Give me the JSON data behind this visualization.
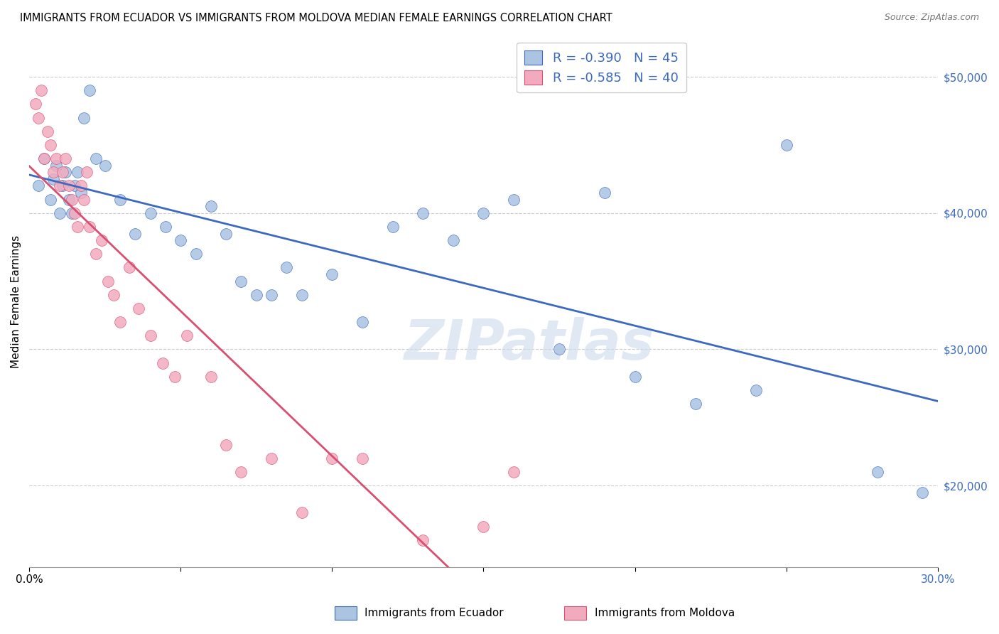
{
  "title": "IMMIGRANTS FROM ECUADOR VS IMMIGRANTS FROM MOLDOVA MEDIAN FEMALE EARNINGS CORRELATION CHART",
  "source": "Source: ZipAtlas.com",
  "ylabel": "Median Female Earnings",
  "yticks": [
    20000,
    30000,
    40000,
    50000
  ],
  "ytick_labels": [
    "$20,000",
    "$30,000",
    "$40,000",
    "$50,000"
  ],
  "xlim": [
    0.0,
    0.3
  ],
  "ylim": [
    14000,
    53000
  ],
  "ecuador_color": "#aac4e2",
  "moldova_color": "#f2abbe",
  "ecuador_line_color": "#3b6abf",
  "moldova_line_color": "#d94f72",
  "ecuador_label": "Immigrants from Ecuador",
  "moldova_label": "Immigrants from Moldova",
  "ecuador_R": -0.39,
  "ecuador_N": 45,
  "moldova_R": -0.585,
  "moldova_N": 40,
  "ecuador_x": [
    0.003,
    0.005,
    0.007,
    0.008,
    0.009,
    0.01,
    0.011,
    0.012,
    0.013,
    0.014,
    0.015,
    0.016,
    0.017,
    0.018,
    0.02,
    0.022,
    0.025,
    0.03,
    0.035,
    0.04,
    0.045,
    0.05,
    0.055,
    0.06,
    0.065,
    0.07,
    0.075,
    0.08,
    0.085,
    0.09,
    0.1,
    0.11,
    0.12,
    0.13,
    0.14,
    0.15,
    0.16,
    0.175,
    0.19,
    0.2,
    0.22,
    0.24,
    0.25,
    0.28,
    0.295
  ],
  "ecuador_y": [
    42000,
    44000,
    41000,
    42500,
    43500,
    40000,
    42000,
    43000,
    41000,
    40000,
    42000,
    43000,
    41500,
    47000,
    49000,
    44000,
    43500,
    41000,
    38500,
    40000,
    39000,
    38000,
    37000,
    40500,
    38500,
    35000,
    34000,
    34000,
    36000,
    34000,
    35500,
    32000,
    39000,
    40000,
    38000,
    40000,
    41000,
    30000,
    41500,
    28000,
    26000,
    27000,
    45000,
    21000,
    19500
  ],
  "moldova_x": [
    0.002,
    0.003,
    0.004,
    0.005,
    0.006,
    0.007,
    0.008,
    0.009,
    0.01,
    0.011,
    0.012,
    0.013,
    0.014,
    0.015,
    0.016,
    0.017,
    0.018,
    0.019,
    0.02,
    0.022,
    0.024,
    0.026,
    0.028,
    0.03,
    0.033,
    0.036,
    0.04,
    0.044,
    0.048,
    0.052,
    0.06,
    0.065,
    0.07,
    0.08,
    0.09,
    0.1,
    0.11,
    0.13,
    0.15,
    0.16
  ],
  "moldova_y": [
    48000,
    47000,
    49000,
    44000,
    46000,
    45000,
    43000,
    44000,
    42000,
    43000,
    44000,
    42000,
    41000,
    40000,
    39000,
    42000,
    41000,
    43000,
    39000,
    37000,
    38000,
    35000,
    34000,
    32000,
    36000,
    33000,
    31000,
    29000,
    28000,
    31000,
    28000,
    23000,
    21000,
    22000,
    18000,
    22000,
    22000,
    16000,
    17000,
    21000
  ],
  "watermark": "ZIPatlas",
  "moldova_line_end_x": 0.155,
  "moldova_dashed_color": "#cccccc"
}
